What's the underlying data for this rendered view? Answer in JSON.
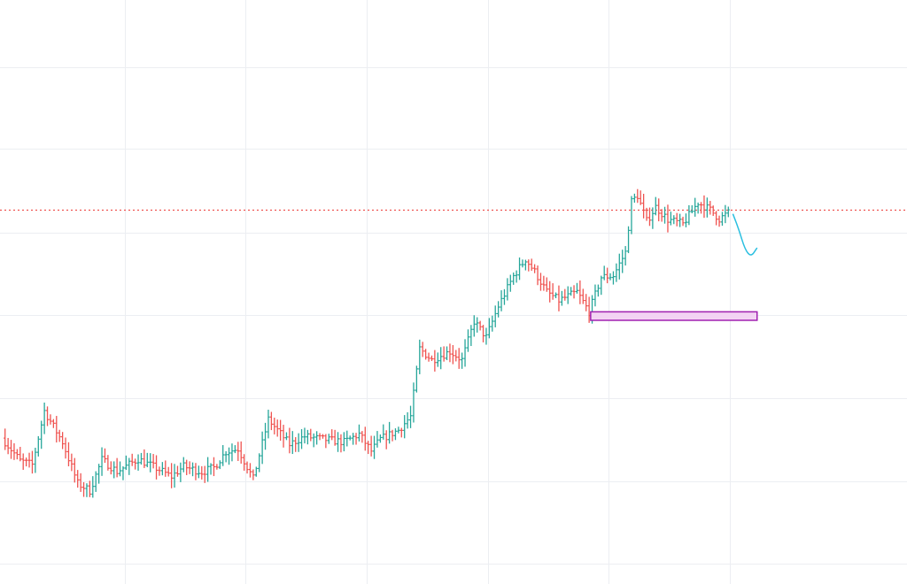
{
  "colors": {
    "up": "#26a69a",
    "down": "#ef5350",
    "grid": "#eceef2",
    "reference_line": "#ef5350",
    "zone_fill": "#f3d3f3",
    "zone_border": "#a020b0",
    "projection": "#2bbfe0"
  },
  "chart_data": {
    "type": "ohlc",
    "grid": true,
    "legend": "none",
    "title": "",
    "xlabel": "",
    "ylabel": "",
    "ylim": [
      0,
      100
    ],
    "xlim": [
      0,
      240
    ],
    "x_grid": [
      40,
      80,
      120,
      160,
      200,
      240
    ],
    "y_grid": [
      2,
      16.5,
      31.3,
      46,
      60.5,
      75.3,
      89.7
    ],
    "reference_level": 64.5,
    "zone": {
      "x_start": 194,
      "x_end": 249,
      "top": 46.5,
      "bottom": 45.0
    },
    "projection": {
      "points": [
        [
          241,
          63.8
        ],
        [
          243,
          61.0
        ],
        [
          245,
          57.5
        ],
        [
          247,
          56.2
        ],
        [
          249,
          57.8
        ]
      ]
    },
    "control_points": [
      [
        0,
        24.2
      ],
      [
        6,
        20.2
      ],
      [
        10,
        19.5
      ],
      [
        14,
        29.0
      ],
      [
        20,
        23.5
      ],
      [
        25,
        16.2
      ],
      [
        29,
        14.9
      ],
      [
        33,
        20.4
      ],
      [
        38,
        18.3
      ],
      [
        45,
        20.5
      ],
      [
        52,
        18.6
      ],
      [
        56,
        17.4
      ],
      [
        60,
        19.2
      ],
      [
        66,
        18.2
      ],
      [
        70,
        19.0
      ],
      [
        74,
        21.8
      ],
      [
        78,
        22.3
      ],
      [
        83,
        17.0
      ],
      [
        88,
        27.5
      ],
      [
        95,
        23.1
      ],
      [
        100,
        24.5
      ],
      [
        106,
        24.0
      ],
      [
        113,
        23.5
      ],
      [
        118,
        24.9
      ],
      [
        122,
        21.9
      ],
      [
        125,
        24.0
      ],
      [
        131,
        25.6
      ],
      [
        135,
        28.0
      ],
      [
        138,
        40.0
      ],
      [
        142,
        38.0
      ],
      [
        148,
        39.5
      ],
      [
        152,
        38.0
      ],
      [
        156,
        44.8
      ],
      [
        160,
        42.0
      ],
      [
        164,
        47.5
      ],
      [
        169,
        52.8
      ],
      [
        173,
        55.8
      ],
      [
        176,
        53.6
      ],
      [
        180,
        50.0
      ],
      [
        184,
        48.5
      ],
      [
        190,
        50.0
      ],
      [
        194,
        46.5
      ],
      [
        198,
        52.6
      ],
      [
        202,
        52.9
      ],
      [
        206,
        57.0
      ],
      [
        208,
        66.0
      ],
      [
        210,
        67.0
      ],
      [
        213,
        62.5
      ],
      [
        216,
        65.0
      ],
      [
        220,
        62.8
      ],
      [
        225,
        62.0
      ],
      [
        230,
        65.8
      ],
      [
        234,
        64.5
      ],
      [
        237,
        62.9
      ],
      [
        240,
        64.0
      ]
    ]
  }
}
